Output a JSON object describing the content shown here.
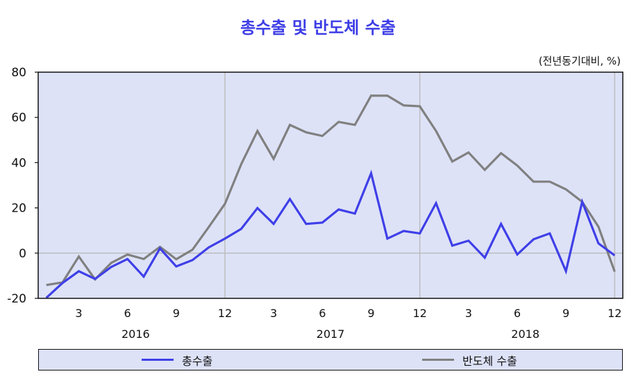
{
  "title": "총수출 및 반도체 수출",
  "unit_label": "(전년동기대비, %)",
  "colors": {
    "title": "#3d3de6",
    "plot_background": "#dde2f7",
    "series_total": "#3f3fe8",
    "series_semiconductor": "#808080",
    "gridline": "#bdbdbd",
    "axis": "#111111"
  },
  "legend": {
    "items": [
      {
        "label": "총수출",
        "color": "#3f3fe8"
      },
      {
        "label": "반도체 수출",
        "color": "#808080"
      }
    ]
  },
  "chart_data": {
    "type": "line",
    "title": "총수출 및 반도체 수출",
    "subtitle": "(전년동기대비, %)",
    "xlabel": "",
    "ylabel": "",
    "ylim": [
      -20,
      80
    ],
    "yticks": [
      -20,
      0,
      20,
      40,
      60,
      80
    ],
    "x_tick_labels": [
      "3",
      "6",
      "9",
      "12",
      "3",
      "6",
      "9",
      "12",
      "3",
      "6",
      "9",
      "12"
    ],
    "x_tick_months": [
      3,
      6,
      9,
      12,
      15,
      18,
      21,
      24,
      27,
      30,
      33,
      36
    ],
    "year_labels": [
      "2016",
      "2017",
      "2018"
    ],
    "grid": {
      "horizontal_zero_line": true,
      "vertical_at_year_end": true
    },
    "legend_position": "bottom",
    "x": [
      "2016-01",
      "2016-02",
      "2016-03",
      "2016-04",
      "2016-05",
      "2016-06",
      "2016-07",
      "2016-08",
      "2016-09",
      "2016-10",
      "2016-11",
      "2016-12",
      "2017-01",
      "2017-02",
      "2017-03",
      "2017-04",
      "2017-05",
      "2017-06",
      "2017-07",
      "2017-08",
      "2017-09",
      "2017-10",
      "2017-11",
      "2017-12",
      "2018-01",
      "2018-02",
      "2018-03",
      "2018-04",
      "2018-05",
      "2018-06",
      "2018-07",
      "2018-08",
      "2018-09",
      "2018-10",
      "2018-11",
      "2018-12"
    ],
    "series": [
      {
        "name": "총수출",
        "values": [
          -19.8,
          -13.2,
          -8.0,
          -11.4,
          -6.1,
          -2.6,
          -10.4,
          2.1,
          -5.9,
          -3.1,
          2.5,
          6.4,
          10.7,
          19.9,
          12.9,
          23.9,
          12.9,
          13.5,
          19.3,
          17.5,
          35.3,
          6.4,
          9.8,
          8.7,
          22.1,
          3.3,
          5.5,
          -2.0,
          12.9,
          -0.6,
          6.1,
          8.7,
          -8.0,
          22.7,
          4.3,
          -1.0
        ]
      },
      {
        "name": "반도체 수출",
        "values": [
          -14.1,
          -12.9,
          -1.5,
          -11.6,
          -4.3,
          -0.6,
          -2.6,
          2.8,
          -2.7,
          1.5,
          11.5,
          21.8,
          39.3,
          54.0,
          41.7,
          56.7,
          53.4,
          51.8,
          58.0,
          56.7,
          69.6,
          69.6,
          65.3,
          64.9,
          54.0,
          40.5,
          44.5,
          36.8,
          44.2,
          38.7,
          31.6,
          31.6,
          28.2,
          22.7,
          11.7,
          -8.2
        ]
      }
    ]
  }
}
